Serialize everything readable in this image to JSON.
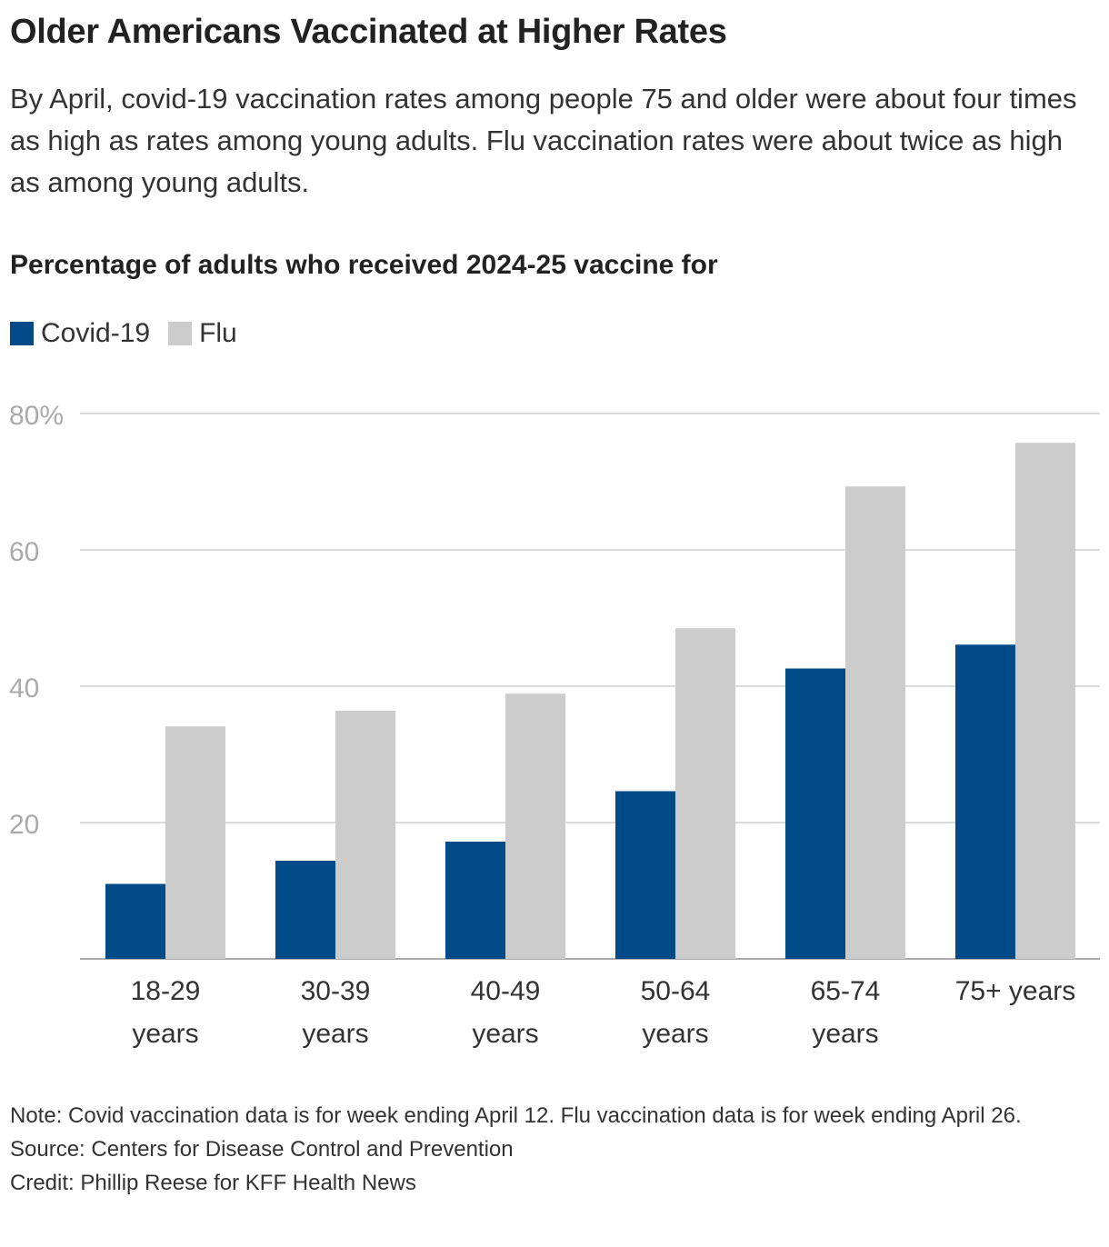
{
  "header": {
    "title": "Older Americans Vaccinated at Higher Rates",
    "subtitle": "By April, covid-19 vaccination rates among people 75 and older were about four times as high as rates among young adults. Flu vaccination rates were about twice as high as among young adults.",
    "chart_heading": "Percentage of adults who received 2024-25 vaccine for"
  },
  "legend": {
    "covid_label": "Covid-19",
    "flu_label": "Flu"
  },
  "colors": {
    "covid": "#004a88",
    "flu": "#cccccc",
    "grid": "#cfcfcf",
    "axis": "#aaaaaa",
    "tick_text": "#aaaaaa",
    "category_text": "#333333"
  },
  "chart_data": {
    "type": "bar",
    "title": "Percentage of adults who received 2024-25 vaccine for",
    "xlabel": "",
    "ylabel": "",
    "ylim": [
      0,
      80
    ],
    "yticks": [
      20,
      40,
      60,
      80
    ],
    "ytick_labels": [
      "20",
      "40",
      "60",
      "80%"
    ],
    "categories": [
      [
        "18-29",
        "years"
      ],
      [
        "30-39",
        "years"
      ],
      [
        "40-49",
        "years"
      ],
      [
        "50-64",
        "years"
      ],
      [
        "65-74",
        "years"
      ],
      [
        "75+ years"
      ]
    ],
    "series": [
      {
        "name": "Covid-19",
        "values": [
          11,
          14.4,
          17.2,
          24.6,
          42.6,
          46.1
        ]
      },
      {
        "name": "Flu",
        "values": [
          34.1,
          36.4,
          38.9,
          48.5,
          69.3,
          75.7
        ]
      }
    ],
    "legend_position": "top-left",
    "grid": true
  },
  "notes": {
    "note": "Note: Covid vaccination data is for week ending April 12. Flu vaccination data is for week ending April 26.",
    "source": "Source: Centers for Disease Control and Prevention",
    "credit": "Credit: Phillip Reese for KFF Health News"
  }
}
